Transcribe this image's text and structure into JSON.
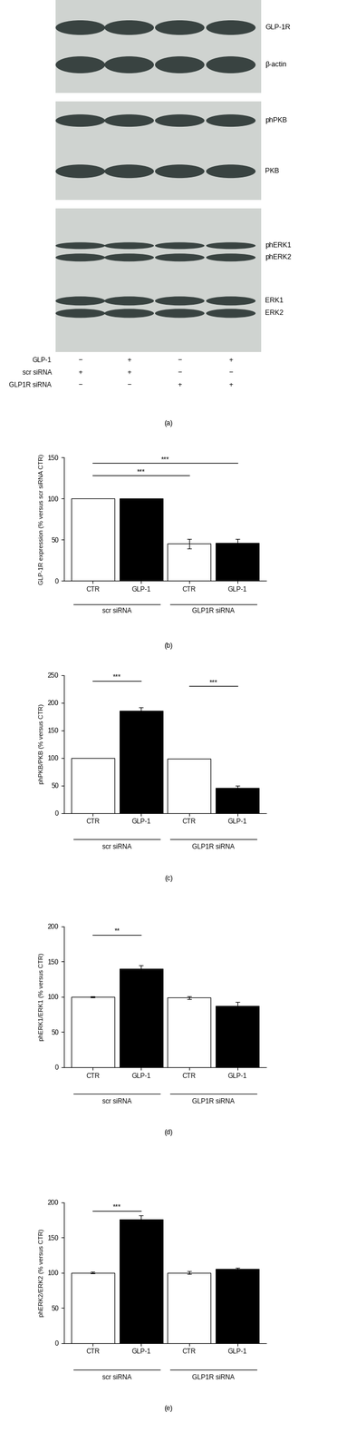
{
  "blot_panel": {
    "label": "(a)",
    "blots": [
      [
        "GLP-1R",
        "β-actin"
      ],
      [
        "phPKB",
        "PKB"
      ],
      [
        "phERK1",
        "phERK2",
        "ERK1",
        "ERK2"
      ]
    ],
    "conditions": [
      {
        "label": "GLP-1",
        "signs": [
          "−",
          "+",
          "−",
          "+"
        ]
      },
      {
        "label": "scr siRNA",
        "signs": [
          "+",
          "+",
          "−",
          "−"
        ]
      },
      {
        "label": "GLP1R siRNA",
        "signs": [
          "−",
          "−",
          "+",
          "+"
        ]
      }
    ]
  },
  "chart_data": [
    {
      "type": "bar",
      "panel_label": "(b)",
      "y_label": "GLP-1R expression (% versus scr siRNA CTR)",
      "categories": [
        "CTR",
        "GLP-1",
        "CTR",
        "GLP-1"
      ],
      "values": [
        100,
        100,
        45,
        46
      ],
      "errors": [
        0,
        0,
        6,
        5
      ],
      "colors": [
        "#ffffff",
        "#000000",
        "#ffffff",
        "#000000"
      ],
      "groups": [
        {
          "label": "scr siRNA",
          "members": [
            0,
            1
          ]
        },
        {
          "label": "GLP1R siRNA",
          "members": [
            2,
            3
          ]
        }
      ],
      "significance": [
        {
          "text": "***",
          "from": 0,
          "to": 2,
          "y": 128
        },
        {
          "text": "***",
          "from": 0,
          "to": 3,
          "y": 143
        }
      ],
      "ylim": [
        0,
        150
      ],
      "yticks": [
        0,
        50,
        100,
        150
      ],
      "grid": false
    },
    {
      "type": "bar",
      "panel_label": "(c)",
      "y_label": "phPKB/PKB (% versus CTR)",
      "categories": [
        "CTR",
        "GLP-1",
        "CTR",
        "GLP-1"
      ],
      "values": [
        100,
        185,
        99,
        46
      ],
      "errors": [
        0,
        7,
        0,
        4
      ],
      "colors": [
        "#ffffff",
        "#000000",
        "#ffffff",
        "#000000"
      ],
      "groups": [
        {
          "label": "scr siRNA",
          "members": [
            0,
            1
          ]
        },
        {
          "label": "GLP1R siRNA",
          "members": [
            2,
            3
          ]
        }
      ],
      "significance": [
        {
          "text": "***",
          "from": 0,
          "to": 1,
          "y": 240
        },
        {
          "text": "***",
          "from": 2,
          "to": 3,
          "y": 230
        }
      ],
      "ylim": [
        0,
        250
      ],
      "yticks": [
        0,
        50,
        100,
        150,
        200,
        250
      ],
      "grid": false
    },
    {
      "type": "bar",
      "panel_label": "(d)",
      "y_label": "phERK1/ERK1 (% versus CTR)",
      "categories": [
        "CTR",
        "GLP-1",
        "CTR",
        "GLP-1"
      ],
      "values": [
        100,
        140,
        99,
        87
      ],
      "errors": [
        1,
        5,
        2,
        6
      ],
      "colors": [
        "#ffffff",
        "#000000",
        "#ffffff",
        "#000000"
      ],
      "groups": [
        {
          "label": "scr siRNA",
          "members": [
            0,
            1
          ]
        },
        {
          "label": "GLP1R siRNA",
          "members": [
            2,
            3
          ]
        }
      ],
      "significance": [
        {
          "text": "**",
          "from": 0,
          "to": 1,
          "y": 188
        }
      ],
      "ylim": [
        0,
        200
      ],
      "yticks": [
        0,
        50,
        100,
        150,
        200
      ],
      "grid": false
    },
    {
      "type": "bar",
      "panel_label": "(e)",
      "y_label": "phERK2/ERK2 (% versus CTR)",
      "categories": [
        "CTR",
        "GLP-1",
        "CTR",
        "GLP-1"
      ],
      "values": [
        100,
        176,
        100,
        105
      ],
      "errors": [
        1,
        5,
        2,
        2
      ],
      "colors": [
        "#ffffff",
        "#000000",
        "#ffffff",
        "#000000"
      ],
      "groups": [
        {
          "label": "scr siRNA",
          "members": [
            0,
            1
          ]
        },
        {
          "label": "GLP1R siRNA",
          "members": [
            2,
            3
          ]
        }
      ],
      "significance": [
        {
          "text": "***",
          "from": 0,
          "to": 1,
          "y": 188
        }
      ],
      "ylim": [
        0,
        200
      ],
      "yticks": [
        0,
        50,
        100,
        150,
        200
      ],
      "grid": false
    }
  ]
}
